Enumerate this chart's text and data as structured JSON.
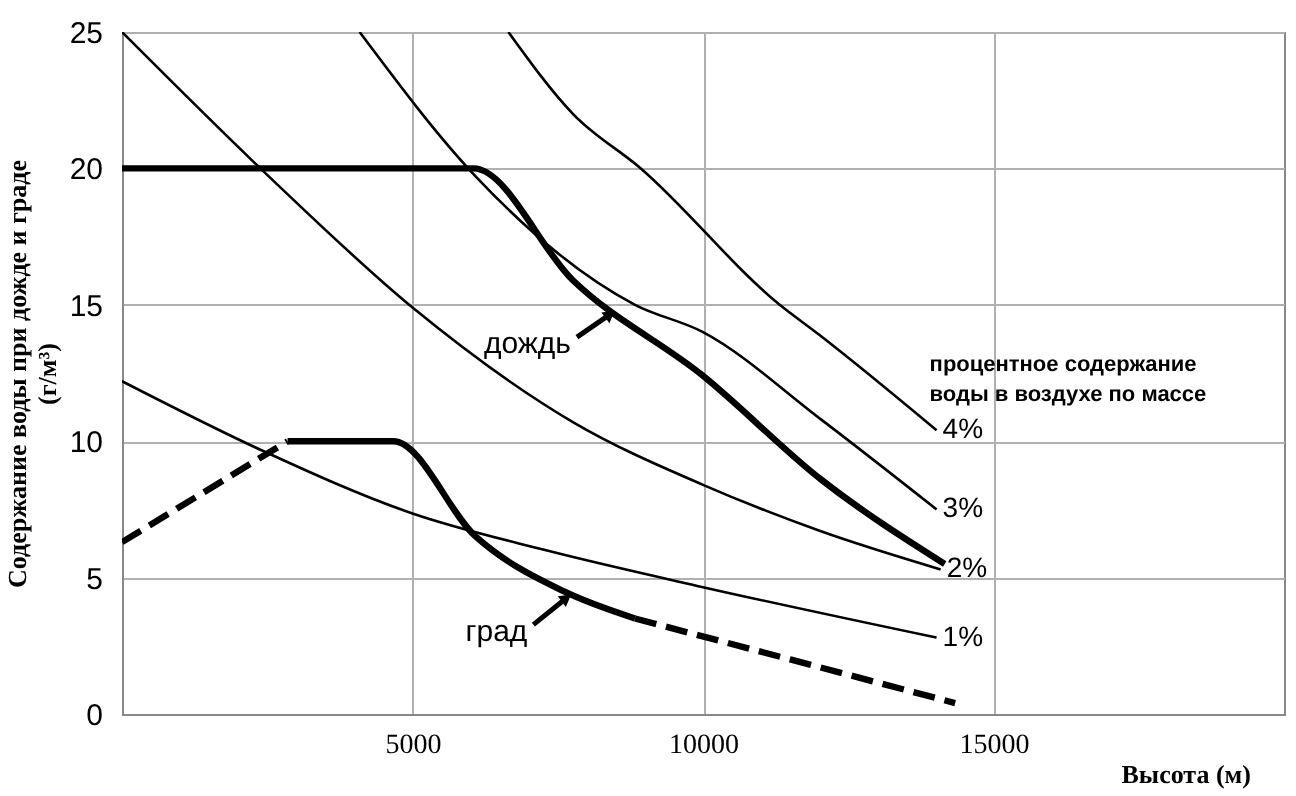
{
  "chart_data": {
    "type": "line",
    "xlabel": "Высота (м)",
    "ylabel": "Содержание воды при дожде и граде (г/м³)",
    "xlim": [
      0,
      20000
    ],
    "ylim": [
      0,
      25
    ],
    "xticks": [
      5000,
      10000,
      15000
    ],
    "yticks": [
      0,
      5,
      10,
      15,
      20,
      25
    ],
    "grid": true,
    "marker": "none",
    "series": [
      {
        "name": "4%",
        "color": "#000000",
        "line_style": "solid",
        "x": [
          6650,
          7760,
          8930,
          11320,
          12000,
          14020
        ],
        "values": [
          25,
          22.0,
          20,
          15,
          13.9,
          10.4
        ]
      },
      {
        "name": "3%",
        "color": "#000000",
        "line_style": "solid",
        "x": [
          4090,
          6090,
          8830,
          10000,
          12030,
          14020
        ],
        "values": [
          25,
          19.7,
          15.0,
          14.0,
          10.8,
          7.5
        ]
      },
      {
        "name": "2%",
        "color": "#000000",
        "line_style": "solid",
        "x": [
          0,
          2530,
          5000,
          7760,
          10000,
          12030,
          14090
        ],
        "values": [
          25,
          19.7,
          14.9,
          10.7,
          8.4,
          6.7,
          5.3
        ]
      },
      {
        "name": "1%",
        "color": "#000000",
        "line_style": "solid",
        "x": [
          0,
          2420,
          5000,
          7300,
          10000,
          14020
        ],
        "values": [
          12.2,
          9.65,
          7.35,
          6.0,
          4.65,
          2.8
        ]
      },
      {
        "color": "#000000",
        "line_style": "solid",
        "x": [
          0,
          6050,
          7760,
          10000,
          12030,
          14160
        ],
        "values": [
          20,
          20,
          15.9,
          12.4,
          8.6,
          5.5
        ]
      },
      {
        "color": "#000000",
        "line_style": "dashed",
        "x": [
          0,
          2850
        ],
        "values": [
          6.3,
          10
        ]
      },
      {
        "color": "#000000",
        "line_style": "solid",
        "x": [
          2850,
          4670,
          6090,
          7600,
          8830
        ],
        "values": [
          10,
          10,
          6.5,
          4.5,
          3.5
        ]
      },
      {
        "color": "#000000",
        "line_style": "dashed",
        "x": [
          8830,
          11500,
          14340
        ],
        "values": [
          3.5,
          2.0,
          0.4
        ]
      }
    ],
    "annotations": [
      {
        "text": "дождь",
        "x": 8400,
        "y": 14.65
      },
      {
        "text": "град",
        "x": 7650,
        "y": 4.25
      },
      "процентное  содержание\nводы в воздухе по массе"
    ]
  }
}
